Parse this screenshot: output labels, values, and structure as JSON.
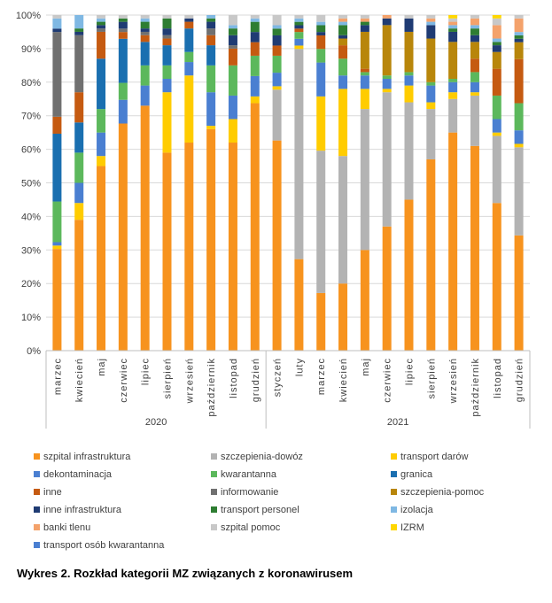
{
  "caption": "Wykres 2. Rozkład kategorii MZ związanych z koronawirusem",
  "chart_data": {
    "type": "bar",
    "stacked": true,
    "percent": true,
    "ylim": [
      0,
      100
    ],
    "yticks": [
      "0%",
      "10%",
      "20%",
      "30%",
      "40%",
      "50%",
      "60%",
      "70%",
      "80%",
      "90%",
      "100%"
    ],
    "categories": [
      "marzec",
      "kwiecień",
      "maj",
      "czerwiec",
      "lipiec",
      "sierpień",
      "wrzesień",
      "październik",
      "listopad",
      "grudzień",
      "styczeń",
      "luty",
      "marzec",
      "kwiecień",
      "maj",
      "czerwiec",
      "lipiec",
      "sierpień",
      "wrzesień",
      "październik",
      "listopad",
      "grudzień"
    ],
    "groups": [
      {
        "label": "2020",
        "start": 0,
        "end": 9
      },
      {
        "label": "2021",
        "start": 10,
        "end": 21
      }
    ],
    "series": [
      {
        "name": "szpital infrastruktura",
        "color": "#f7931e",
        "values": [
          30,
          39,
          55,
          67,
          73,
          59,
          62,
          66,
          62,
          73,
          62,
          27,
          17,
          20,
          30,
          37,
          45,
          57,
          65,
          61,
          44,
          34
        ]
      },
      {
        "name": "szczepienia-dowóz",
        "color": "#b3b3b3",
        "values": [
          0,
          0,
          0,
          0,
          0,
          0,
          0,
          0,
          0,
          0,
          15,
          62,
          42,
          38,
          42,
          40,
          29,
          15,
          10,
          15,
          20,
          26
        ]
      },
      {
        "name": "transport darów",
        "color": "#ffcc00",
        "values": [
          1,
          5,
          3,
          0,
          0,
          18,
          20,
          1,
          7,
          2,
          1,
          1,
          16,
          20,
          6,
          1,
          5,
          2,
          2,
          1,
          1,
          1
        ]
      },
      {
        "name": "dekontaminacja",
        "color": "#4a7fd1",
        "values": [
          1,
          6,
          7,
          7,
          6,
          4,
          4,
          10,
          7,
          6,
          4,
          2,
          10,
          4,
          4,
          3,
          3,
          5,
          3,
          3,
          4,
          4
        ]
      },
      {
        "name": "kwarantanna",
        "color": "#5cb85c",
        "values": [
          12,
          9,
          7,
          5,
          6,
          4,
          3,
          8,
          9,
          6,
          5,
          2,
          4,
          5,
          1,
          1,
          1,
          1,
          1,
          3,
          7,
          8
        ]
      },
      {
        "name": "granica",
        "color": "#1a6fb0",
        "values": [
          20,
          9,
          15,
          13,
          7,
          6,
          7,
          6,
          0,
          0,
          0,
          0,
          0,
          0,
          0,
          0,
          0,
          0,
          0,
          0,
          0,
          0
        ]
      },
      {
        "name": "inne",
        "color": "#c55a11",
        "values": [
          5,
          9,
          8,
          2,
          2,
          2,
          2,
          3,
          5,
          4,
          3,
          1,
          4,
          4,
          1,
          0,
          0,
          0,
          0,
          4,
          8,
          13
        ]
      },
      {
        "name": "informowanie",
        "color": "#707070",
        "values": [
          25,
          17,
          1,
          1,
          1,
          1,
          0,
          2,
          1,
          0,
          0,
          0,
          0,
          0,
          0,
          0,
          0,
          0,
          0,
          0,
          0,
          0
        ]
      },
      {
        "name": "szczepienia-pomoc",
        "color": "#b8860b",
        "values": [
          0,
          0,
          0,
          0,
          0,
          0,
          0,
          0,
          0,
          0,
          0,
          0,
          0,
          2,
          11,
          15,
          12,
          13,
          11,
          5,
          5,
          5
        ]
      },
      {
        "name": "inne infrastruktura",
        "color": "#1f3b73",
        "values": [
          1,
          1,
          1,
          2,
          1,
          2,
          1,
          2,
          3,
          3,
          3,
          1,
          1,
          1,
          2,
          2,
          4,
          4,
          3,
          2,
          2,
          1
        ]
      },
      {
        "name": "transport personel",
        "color": "#2e7d32",
        "values": [
          0,
          1,
          1,
          1,
          2,
          3,
          0,
          1,
          2,
          3,
          2,
          1,
          2,
          3,
          1,
          0,
          0,
          0,
          1,
          2,
          1,
          1
        ]
      },
      {
        "name": "izolacja",
        "color": "#7fb8e3",
        "values": [
          3,
          4,
          1,
          0,
          1,
          0,
          0,
          1,
          1,
          1,
          1,
          1,
          1,
          1,
          0,
          0,
          0,
          1,
          1,
          1,
          1,
          1
        ]
      },
      {
        "name": "banki tlenu",
        "color": "#f4a26b",
        "values": [
          0,
          0,
          0,
          0,
          0,
          0,
          0,
          0,
          0,
          0,
          0,
          0,
          0,
          1,
          1,
          1,
          0,
          1,
          1,
          2,
          4,
          4
        ]
      },
      {
        "name": "szpital pomoc",
        "color": "#c8c8c8",
        "values": [
          1,
          0,
          1,
          1,
          1,
          1,
          1,
          0,
          3,
          1,
          3,
          1,
          2,
          1,
          1,
          0,
          1,
          1,
          1,
          1,
          2,
          1
        ]
      },
      {
        "name": "IZRM",
        "color": "#ffd700",
        "values": [
          0,
          0,
          0,
          0,
          0,
          0,
          0,
          0,
          0,
          0,
          0,
          0,
          0,
          0,
          0,
          0,
          0,
          0,
          1,
          0,
          1,
          0
        ]
      },
      {
        "name": "transport osób kwarantanna",
        "color": "#4a7fd1",
        "values": [
          0,
          0,
          0,
          0,
          0,
          0,
          0,
          0,
          0,
          0,
          0,
          0,
          0,
          0,
          0,
          0,
          0,
          0,
          0,
          0,
          0,
          0
        ]
      }
    ]
  }
}
